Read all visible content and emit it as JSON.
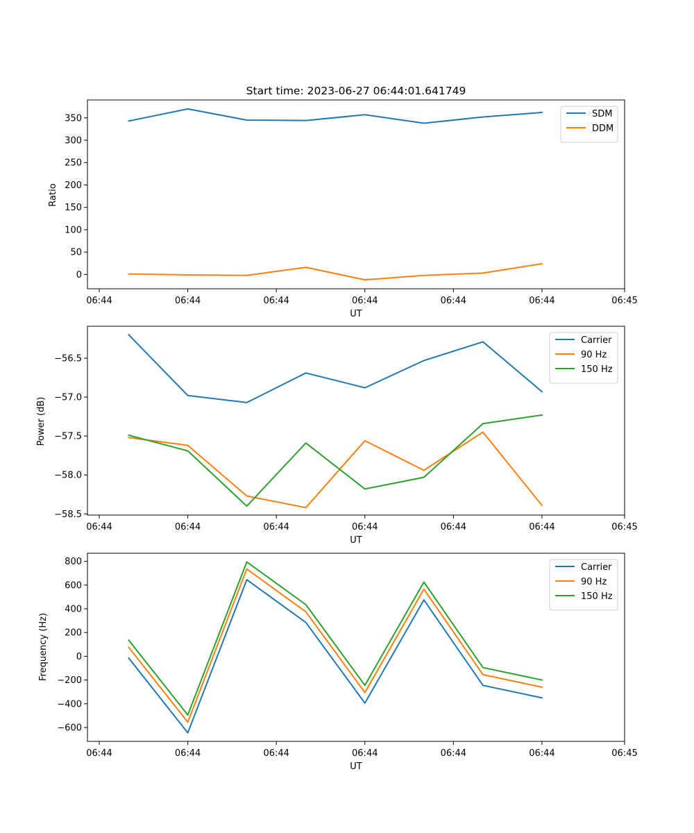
{
  "colors": {
    "blue": "#1f77b4",
    "orange": "#ff7f0e",
    "green": "#2ca02c"
  },
  "chart_data": [
    {
      "type": "line",
      "title": "Start time: 2023-06-27 06:44:01.641749",
      "xlabel": "UT",
      "ylabel": "Ratio",
      "x": [
        1,
        2,
        3,
        4,
        5,
        6,
        7,
        8
      ],
      "xlim": [
        0.3,
        9.4
      ],
      "xticks": [
        0.5,
        2,
        3.5,
        5,
        6.5,
        8,
        9.4
      ],
      "xticklabels": [
        "06:44",
        "06:44",
        "06:44",
        "06:44",
        "06:44",
        "06:44",
        "06:45"
      ],
      "ylim": [
        -32,
        390
      ],
      "yticks": [
        0,
        50,
        100,
        150,
        200,
        250,
        300,
        350
      ],
      "yticklabels": [
        "0",
        "50",
        "100",
        "150",
        "200",
        "250",
        "300",
        "350"
      ],
      "legend": "upper-right",
      "series": [
        {
          "name": "SDM",
          "color": "#1f77b4",
          "values": [
            343,
            370,
            345,
            344,
            357,
            338,
            352,
            362
          ]
        },
        {
          "name": "DDM",
          "color": "#ff7f0e",
          "values": [
            1,
            -1,
            -2,
            16,
            -12,
            -2,
            3,
            24
          ]
        }
      ]
    },
    {
      "type": "line",
      "title": "",
      "xlabel": "UT",
      "ylabel": "Power (dB)",
      "x": [
        1,
        2,
        3,
        4,
        5,
        6,
        7,
        8
      ],
      "xlim": [
        0.3,
        9.4
      ],
      "xticks": [
        0.5,
        2,
        3.5,
        5,
        6.5,
        8,
        9.4
      ],
      "xticklabels": [
        "06:44",
        "06:44",
        "06:44",
        "06:44",
        "06:44",
        "06:44",
        "06:45"
      ],
      "ylim": [
        -58.515,
        -56.09
      ],
      "yticks": [
        -58.5,
        -58.0,
        -57.5,
        -57.0,
        -56.5
      ],
      "yticklabels": [
        "−58.5",
        "−58.0",
        "−57.5",
        "−57.0",
        "−56.5"
      ],
      "legend": "upper-right",
      "series": [
        {
          "name": "Carrier",
          "color": "#1f77b4",
          "values": [
            -56.2,
            -56.98,
            -57.07,
            -56.69,
            -56.88,
            -56.53,
            -56.29,
            -56.93
          ]
        },
        {
          "name": "90 Hz",
          "color": "#ff7f0e",
          "values": [
            -57.52,
            -57.62,
            -58.27,
            -58.42,
            -57.56,
            -57.94,
            -57.45,
            -58.39
          ]
        },
        {
          "name": "150 Hz",
          "color": "#2ca02c",
          "values": [
            -57.49,
            -57.69,
            -58.4,
            -57.59,
            -58.18,
            -58.03,
            -57.34,
            -57.23
          ]
        }
      ]
    },
    {
      "type": "line",
      "title": "",
      "xlabel": "UT",
      "ylabel": "Frequency (Hz)",
      "x": [
        1,
        2,
        3,
        4,
        5,
        6,
        7,
        8
      ],
      "xlim": [
        0.3,
        9.4
      ],
      "xticks": [
        0.5,
        2,
        3.5,
        5,
        6.5,
        8,
        9.4
      ],
      "xticklabels": [
        "06:44",
        "06:44",
        "06:44",
        "06:44",
        "06:44",
        "06:44",
        "06:45"
      ],
      "ylim": [
        -717,
        868
      ],
      "yticks": [
        -600,
        -400,
        -200,
        0,
        200,
        400,
        600,
        800
      ],
      "yticklabels": [
        "−600",
        "−400",
        "−200",
        "0",
        "200",
        "400",
        "600",
        "800"
      ],
      "legend": "upper-right",
      "series": [
        {
          "name": "Carrier",
          "color": "#1f77b4",
          "values": [
            -15,
            -645,
            645,
            285,
            -395,
            475,
            -245,
            -350
          ]
        },
        {
          "name": "90 Hz",
          "color": "#ff7f0e",
          "values": [
            75,
            -555,
            735,
            375,
            -305,
            565,
            -155,
            -260
          ]
        },
        {
          "name": "150 Hz",
          "color": "#2ca02c",
          "values": [
            135,
            -495,
            795,
            435,
            -245,
            625,
            -95,
            -200
          ]
        }
      ]
    }
  ]
}
